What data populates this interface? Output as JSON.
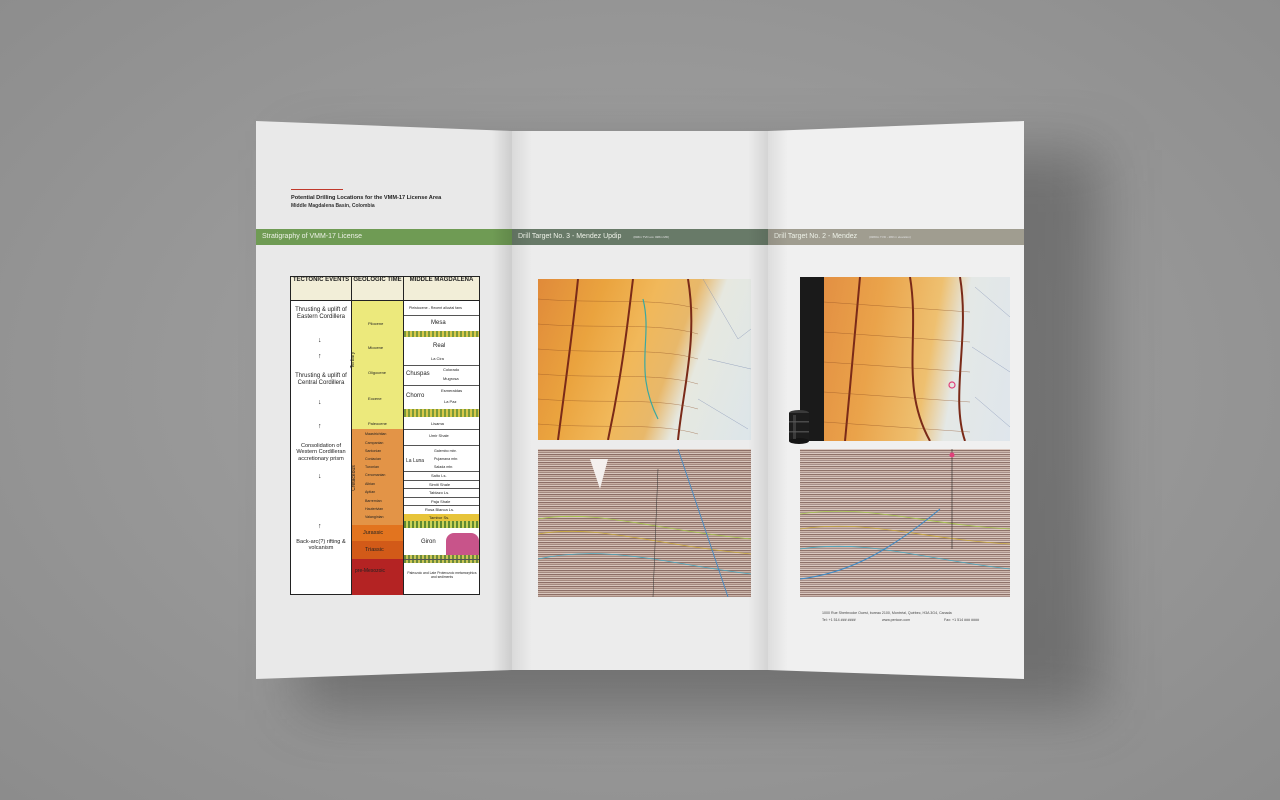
{
  "brochure": {
    "header": {
      "title": "Potential Drilling Locations for the VMM-17 License Area",
      "subtitle": "Middle Magdalena Basin, Colombia"
    },
    "bands": {
      "left": "Stratigraphy of VMM-17 License",
      "middle": "Drill Target No. 3 - Mendez Updip",
      "middle_sub": "(###m TVD est. ###m MD)",
      "right": "Drill Target No. 2 - Mendez",
      "right_sub": "(####m TVD - ### m elevation)",
      "left_color": "#6f9b54",
      "middle_color": "#687a68",
      "right_color": "#a09d90"
    },
    "stratigraphy": {
      "headers": [
        "TECTONIC EVENTS",
        "GEOLOGIC TIME",
        "MIDDLE MAGDALENA"
      ],
      "tectonic_events": [
        "Thrusting & uplift of Eastern Cordillera",
        "Thrusting & uplift of Central Cordillera",
        "Consolidation of Western Cordilleran accretionary prism",
        "Back-arc(?) rifting & volcanism"
      ],
      "periods": [
        "Tertiary",
        "Cretaceous",
        "Jurassic",
        "Triassic",
        "pre-Mesozoic"
      ],
      "epochs": [
        "Pliocene",
        "Miocene",
        "Oligocene",
        "Eocene",
        "Paleocene",
        "Maastrichtian",
        "Campanian",
        "Santonian",
        "Coniacian",
        "Turonian",
        "Cenomanian",
        "Albian",
        "Aptian",
        "Barremian",
        "Hauterivian",
        "Valanginian"
      ],
      "formations": [
        "Pleistocene - Recent alluvial fans",
        "Mesa",
        "Real",
        "La Cira",
        "Chuspas",
        "Colorado",
        "Mugrosa",
        "Chorro",
        "Esmeraldas",
        "La Paz",
        "Lisama",
        "Umir Shale",
        "Galembo mbr.",
        "La Luna",
        "Pujamana mbr.",
        "Salada mbr.",
        "Salto Ls.",
        "Simiti Shale",
        "Tablazo Ls.",
        "Paja Shale",
        "Rosa Blanca Ls.",
        "Tambor Ss.",
        "Giron",
        "Paleozoic and Late Proterozoic metamorphics and sediments"
      ]
    },
    "footer": {
      "address": "1000 Rue Sherbrooke Ouest, bureau 2100, Montréal, Québec, H3A 3G4, Canada",
      "tel": "Tel: +1 514 ### ####",
      "web": "www.pericon.com",
      "fax": "Fax: +1 514 ### ####"
    }
  }
}
